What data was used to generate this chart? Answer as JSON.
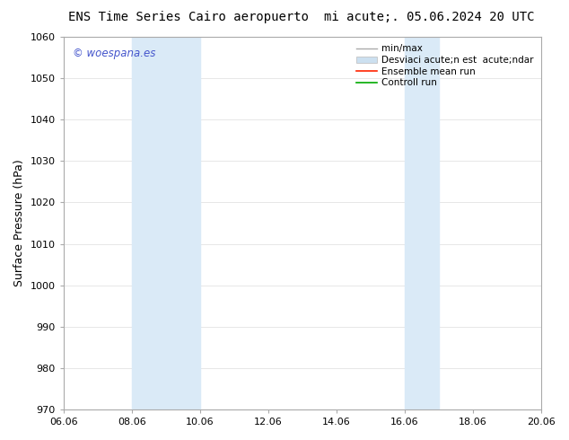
{
  "title_left": "ENS Time Series Cairo aeropuerto",
  "title_right": "mi acute;. 05.06.2024 20 UTC",
  "ylabel": "Surface Pressure (hPa)",
  "ylim": [
    970,
    1060
  ],
  "yticks": [
    970,
    980,
    990,
    1000,
    1010,
    1020,
    1030,
    1040,
    1050,
    1060
  ],
  "xlim_start": 6.06,
  "xlim_end": 20.06,
  "xticks": [
    6.06,
    8.06,
    10.06,
    12.06,
    14.06,
    16.06,
    18.06,
    20.06
  ],
  "xtick_labels": [
    "06.06",
    "08.06",
    "10.06",
    "12.06",
    "14.06",
    "16.06",
    "18.06",
    "20.06"
  ],
  "shaded_regions": [
    {
      "xmin": 8.06,
      "xmax": 10.06
    },
    {
      "xmin": 16.06,
      "xmax": 17.06
    }
  ],
  "shade_color": "#daeaf7",
  "watermark_text": "© woespana.es",
  "watermark_color": "#4455cc",
  "bg_color": "#ffffff",
  "plot_bg_color": "#ffffff",
  "legend_line1_label": "min/max",
  "legend_line1_color": "#aaaaaa",
  "legend_patch_label": "Desviaci acute;n est  acute;ndar",
  "legend_patch_color": "#cce0f0",
  "legend_line3_label": "Ensemble mean run",
  "legend_line3_color": "#ff2200",
  "legend_line4_label": "Controll run",
  "legend_line4_color": "#00aa00",
  "grid_color": "#dddddd",
  "title_fontsize": 10,
  "axis_fontsize": 9,
  "tick_fontsize": 8,
  "legend_fontsize": 7.5
}
